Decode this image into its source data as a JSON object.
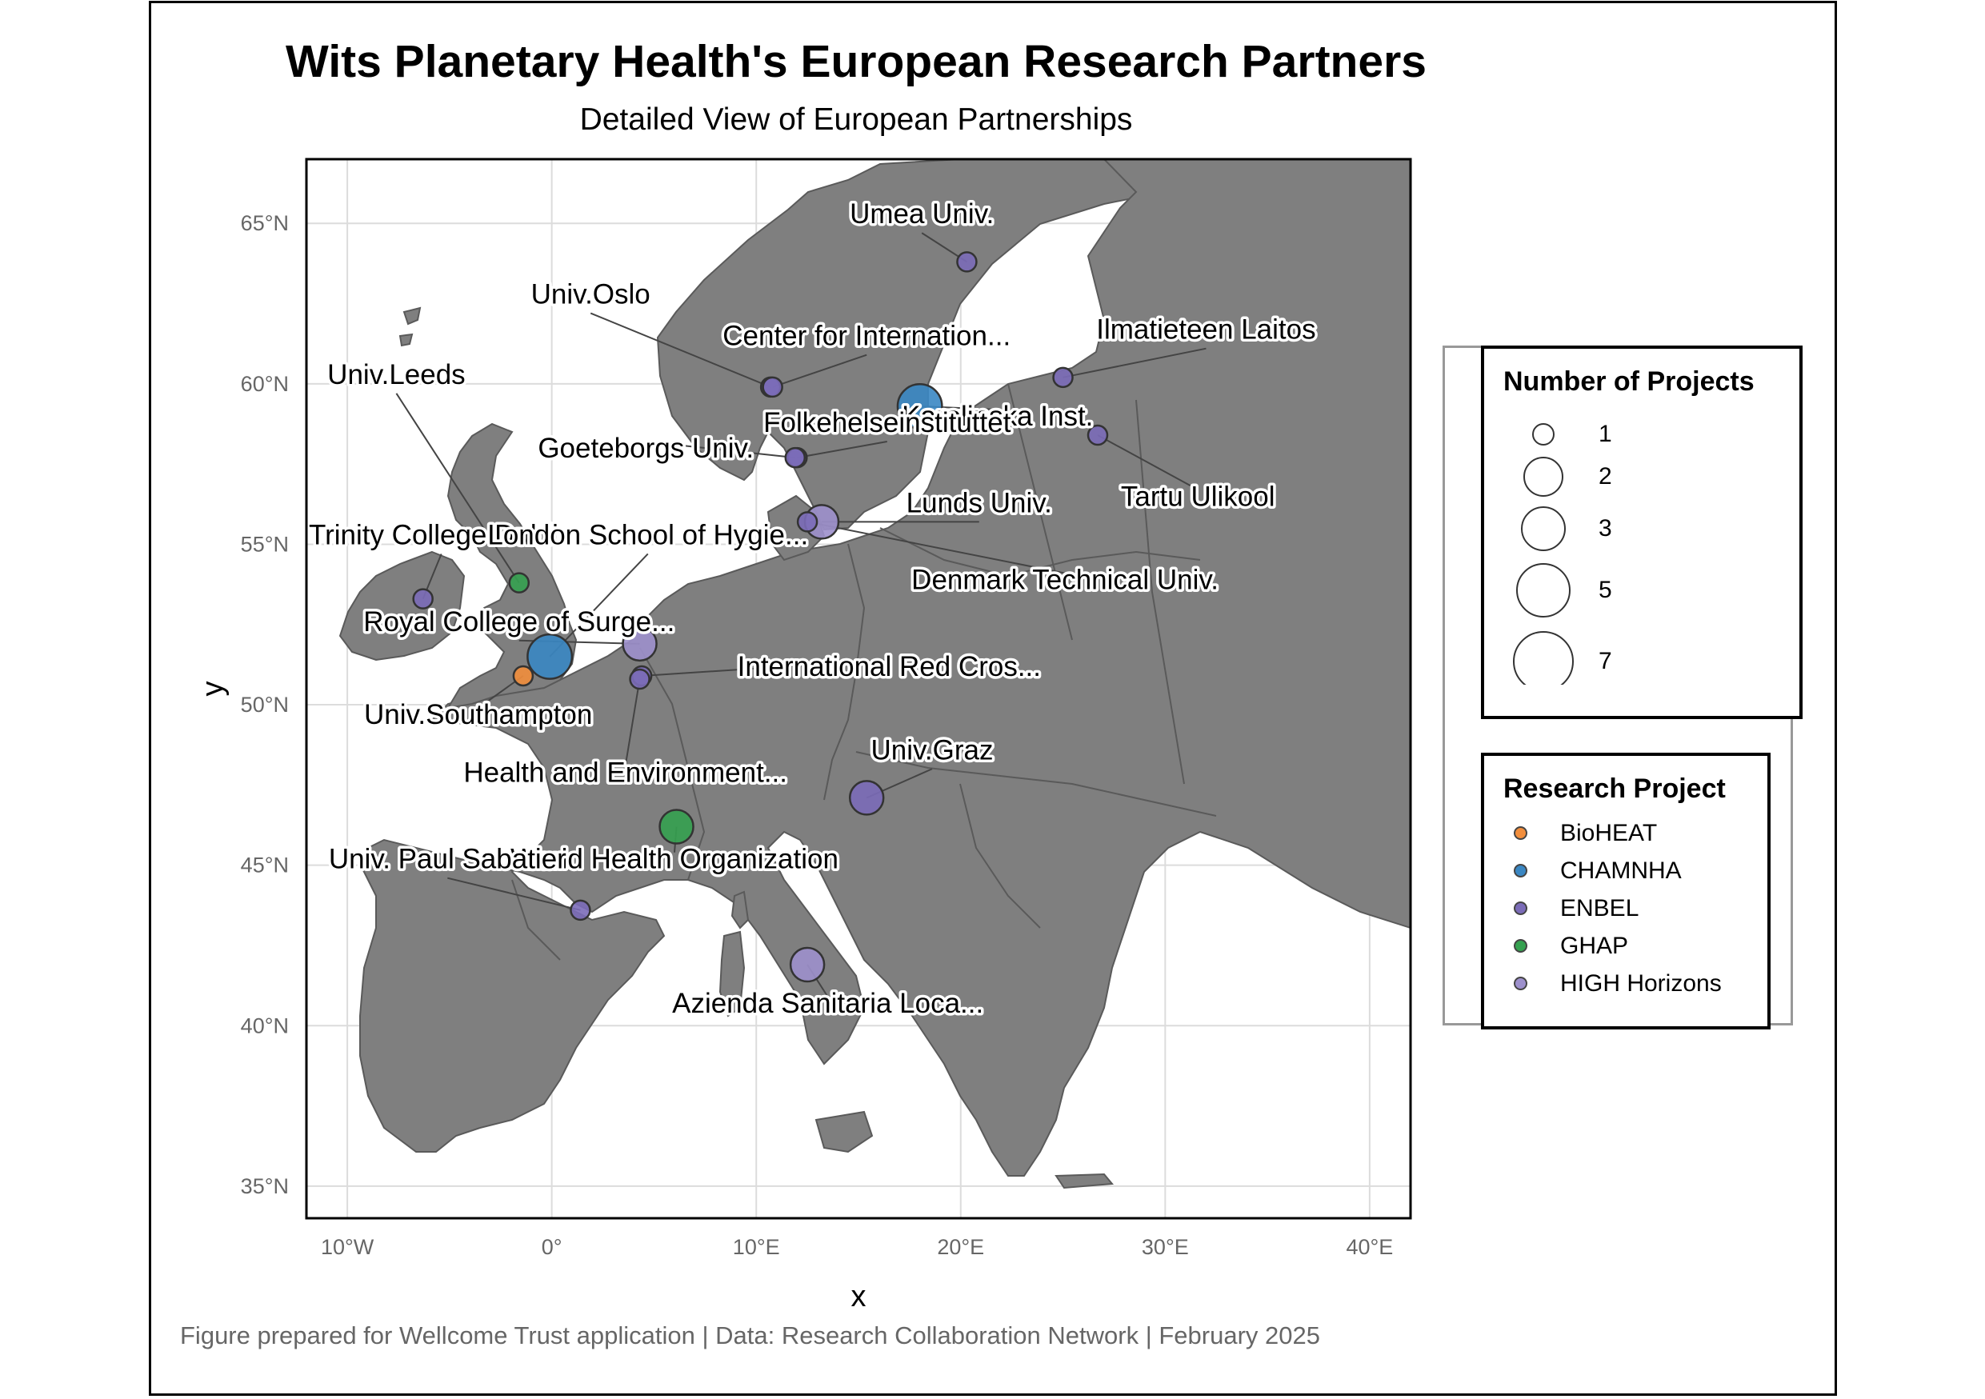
{
  "title": "Wits Planetary Health's European Research Partners",
  "subtitle": "Detailed View of European Partnerships",
  "caption": "Figure prepared for Wellcome Trust application | Data: Research Collaboration Network | February 2025",
  "axes": {
    "xlabel": "x",
    "ylabel": "y",
    "xlim": [
      -12,
      42
    ],
    "ylim": [
      34,
      67
    ],
    "x_ticks": [
      {
        "value": -10,
        "label": "10°W"
      },
      {
        "value": 0,
        "label": "0°"
      },
      {
        "value": 10,
        "label": "10°E"
      },
      {
        "value": 20,
        "label": "20°E"
      },
      {
        "value": 30,
        "label": "30°E"
      },
      {
        "value": 40,
        "label": "40°E"
      }
    ],
    "y_ticks": [
      {
        "value": 35,
        "label": "35°N"
      },
      {
        "value": 40,
        "label": "40°N"
      },
      {
        "value": 45,
        "label": "45°N"
      },
      {
        "value": 50,
        "label": "50°N"
      },
      {
        "value": 55,
        "label": "55°N"
      },
      {
        "value": 60,
        "label": "60°N"
      },
      {
        "value": 65,
        "label": "65°N"
      }
    ]
  },
  "colors": {
    "land": "#7f7f7f",
    "border": "#5a5a5a",
    "BioHEAT": "#f28e3c",
    "CHAMNHA": "#3a87c3",
    "ENBEL": "#7b6cb8",
    "GHAP": "#35a150",
    "HIGH Horizons": "#9d90cc"
  },
  "size_legend": {
    "title": "Number of Projects",
    "items": [
      "1",
      "2",
      "3",
      "5",
      "7"
    ]
  },
  "color_legend": {
    "title": "Research Project",
    "items": [
      "BioHEAT",
      "CHAMNHA",
      "ENBEL",
      "GHAP",
      "HIGH Horizons"
    ]
  },
  "chart_data": {
    "type": "scatter",
    "title": "Wits Planetary Health's European Research Partners",
    "subtitle": "Detailed View of European Partnerships",
    "xlabel": "x",
    "ylabel": "y",
    "xlim": [
      -12,
      42
    ],
    "ylim": [
      34,
      67
    ],
    "grid": true,
    "legend_position": "right",
    "points": [
      {
        "label": "Umea Univ.",
        "lon": 20.3,
        "lat": 63.8,
        "project": "ENBEL",
        "projects": 1,
        "lab_lon": 18.1,
        "lab_lat": 65.0
      },
      {
        "label": "Univ.Oslo",
        "lon": 10.7,
        "lat": 59.9,
        "project": "ENBEL",
        "projects": 1,
        "lab_lon": 1.9,
        "lab_lat": 62.5
      },
      {
        "label": "Center for Internation...",
        "lon": 10.8,
        "lat": 59.9,
        "project": "ENBEL",
        "projects": 1,
        "lab_lon": 15.4,
        "lab_lat": 61.2
      },
      {
        "label": "Ilmatieteen Laitos",
        "lon": 25.0,
        "lat": 60.2,
        "project": "ENBEL",
        "projects": 1,
        "lab_lon": 32.0,
        "lab_lat": 61.4
      },
      {
        "label": "Univ.Leeds",
        "lon": -1.6,
        "lat": 53.8,
        "project": "GHAP",
        "projects": 1,
        "lab_lon": -7.6,
        "lab_lat": 60.0
      },
      {
        "label": "Karolinska Inst.",
        "lon": 18.0,
        "lat": 59.3,
        "project": "CHAMNHA",
        "projects": 3,
        "lab_lon": 21.8,
        "lab_lat": 58.7
      },
      {
        "label": "Folkehelseinstituttet",
        "lon": 12.0,
        "lat": 57.7,
        "project": "ENBEL",
        "projects": 1,
        "lab_lon": 16.4,
        "lab_lat": 58.5
      },
      {
        "label": "Goeteborgs Univ.",
        "lon": 11.9,
        "lat": 57.7,
        "project": "ENBEL",
        "projects": 1,
        "lab_lon": 4.6,
        "lab_lat": 57.7
      },
      {
        "label": "Tartu Ulikool",
        "lon": 26.7,
        "lat": 58.4,
        "project": "ENBEL",
        "projects": 1,
        "lab_lon": 31.6,
        "lab_lat": 56.2
      },
      {
        "label": "Lunds Univ.",
        "lon": 13.2,
        "lat": 55.7,
        "project": "HIGH Horizons",
        "projects": 2,
        "lab_lon": 20.9,
        "lab_lat": 56.0
      },
      {
        "label": "Trinity College Dublin",
        "lon": -6.3,
        "lat": 53.3,
        "project": "ENBEL",
        "projects": 1,
        "lab_lon": -5.4,
        "lab_lat": 55.0
      },
      {
        "label": "London School of Hygie...",
        "lon": -0.1,
        "lat": 51.5,
        "project": "CHAMNHA",
        "projects": 3,
        "lab_lon": 4.7,
        "lab_lat": 55.0
      },
      {
        "label": "Denmark Technical Univ.",
        "lon": 12.5,
        "lat": 55.7,
        "project": "ENBEL",
        "projects": 1,
        "lab_lon": 25.1,
        "lab_lat": 53.6
      },
      {
        "label": "Royal College of Surge...",
        "lon": 4.3,
        "lat": 51.9,
        "project": "HIGH Horizons",
        "projects": 2,
        "lab_lon": -1.6,
        "lab_lat": 52.3
      },
      {
        "label": "International Red Cros...",
        "lon": 4.4,
        "lat": 50.9,
        "project": "ENBEL",
        "projects": 1,
        "lab_lon": 16.5,
        "lab_lat": 50.9
      },
      {
        "label": "Univ.Southampton",
        "lon": -1.4,
        "lat": 50.9,
        "project": "BioHEAT",
        "projects": 1,
        "lab_lon": -3.6,
        "lab_lat": 49.4
      },
      {
        "label": "Univ.Graz",
        "lon": 15.4,
        "lat": 47.1,
        "project": "ENBEL",
        "projects": 2,
        "lab_lon": 18.6,
        "lab_lat": 48.3
      },
      {
        "label": "Health and Environment...",
        "lon": 4.3,
        "lat": 50.8,
        "project": "ENBEL",
        "projects": 1,
        "lab_lon": 3.6,
        "lab_lat": 47.6
      },
      {
        "label": "World Health Organization",
        "lon": 6.1,
        "lat": 46.2,
        "project": "GHAP",
        "projects": 2,
        "lab_lon": 6.0,
        "lab_lat": 44.9
      },
      {
        "label": "Univ. Paul Sabatier",
        "lon": 1.4,
        "lat": 43.6,
        "project": "ENBEL",
        "projects": 1,
        "lab_lon": -5.1,
        "lab_lat": 44.9
      },
      {
        "label": "Azienda Sanitaria Loca...",
        "lon": 12.5,
        "lat": 41.9,
        "project": "HIGH Horizons",
        "projects": 2,
        "lab_lon": 13.5,
        "lab_lat": 40.4
      }
    ]
  }
}
